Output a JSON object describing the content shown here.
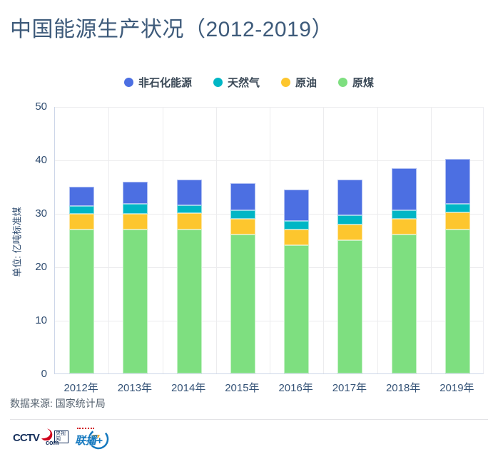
{
  "title": "中国能源生产状况（2012-2019）",
  "chart_data": {
    "type": "bar",
    "stacked": true,
    "title": "中国能源生产状况（2012-2019）",
    "categories": [
      "2012年",
      "2013年",
      "2014年",
      "2015年",
      "2016年",
      "2017年",
      "2018年",
      "2019年"
    ],
    "series": [
      {
        "name": "原煤",
        "color": "#7edf80",
        "values": [
          27.0,
          27.0,
          27.0,
          26.0,
          24.0,
          25.0,
          26.0,
          27.0
        ]
      },
      {
        "name": "原油",
        "color": "#fdc62e",
        "values": [
          2.9,
          2.9,
          3.0,
          2.9,
          3.0,
          2.9,
          3.0,
          3.1
        ]
      },
      {
        "name": "天然气",
        "color": "#00b6c5",
        "values": [
          1.5,
          1.8,
          1.5,
          1.6,
          1.5,
          1.7,
          1.5,
          1.6
        ]
      },
      {
        "name": "非石化能源",
        "color": "#4c6fe2",
        "values": [
          3.5,
          4.2,
          4.8,
          5.1,
          5.9,
          6.7,
          7.9,
          8.5
        ]
      }
    ],
    "totals": [
      34.9,
      35.9,
      36.3,
      35.6,
      34.4,
      36.3,
      38.4,
      40.2
    ],
    "legend_order": [
      3,
      2,
      1,
      0
    ],
    "legend_position": "top",
    "grid": true,
    "ylabel": "单位: 亿吨标准煤",
    "xlabel": "",
    "ylim": [
      0,
      50
    ],
    "yticks": [
      0,
      10,
      20,
      30,
      40,
      50
    ]
  },
  "footer": {
    "source": "数据来源: 国家统计局",
    "logos": {
      "cctv_word": "CCTV",
      "cctv_com": "com",
      "cctv_cn": "央视网",
      "lianbo": "联播+"
    }
  }
}
